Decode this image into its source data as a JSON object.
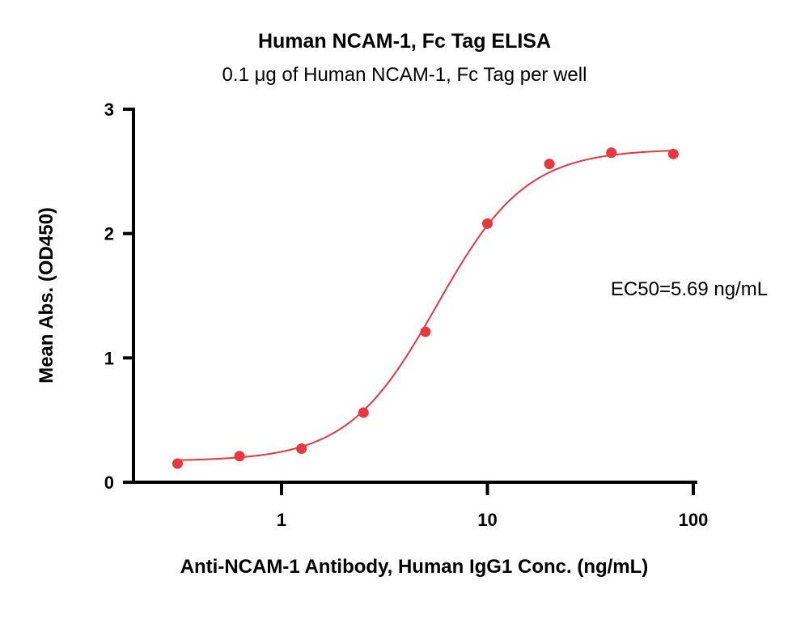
{
  "chart_data": {
    "type": "scatter",
    "title": "Human NCAM-1, Fc Tag ELISA",
    "subtitle": "0.1 μg of Human NCAM-1, Fc Tag per well",
    "xlabel": "Anti-NCAM-1 Antibody, Human IgG1 Conc. (ng/mL)",
    "ylabel": "Mean Abs. (OD450)",
    "x_scale": "log",
    "xlim": [
      0.2,
      100
    ],
    "ylim": [
      0,
      3
    ],
    "x_ticks": [
      1,
      10,
      100
    ],
    "x_tick_labels": [
      "1",
      "10",
      "100"
    ],
    "y_ticks": [
      0,
      1,
      2,
      3
    ],
    "y_tick_labels": [
      "0",
      "1",
      "2",
      "3"
    ],
    "grid": false,
    "series": [
      {
        "color": "#e8383d",
        "x": [
          0.3125,
          0.625,
          1.25,
          2.5,
          5,
          10,
          20,
          40,
          80
        ],
        "y": [
          0.15,
          0.21,
          0.27,
          0.56,
          1.21,
          2.08,
          2.56,
          2.65,
          2.64
        ]
      }
    ],
    "fit_curve": {
      "model": "4PL",
      "bottom": 0.17,
      "top": 2.68,
      "ec50": 5.69,
      "hill": 2.0,
      "color": "#e8383d"
    },
    "annotations": [
      {
        "text": "EC50=5.69 ng/mL"
      }
    ]
  }
}
